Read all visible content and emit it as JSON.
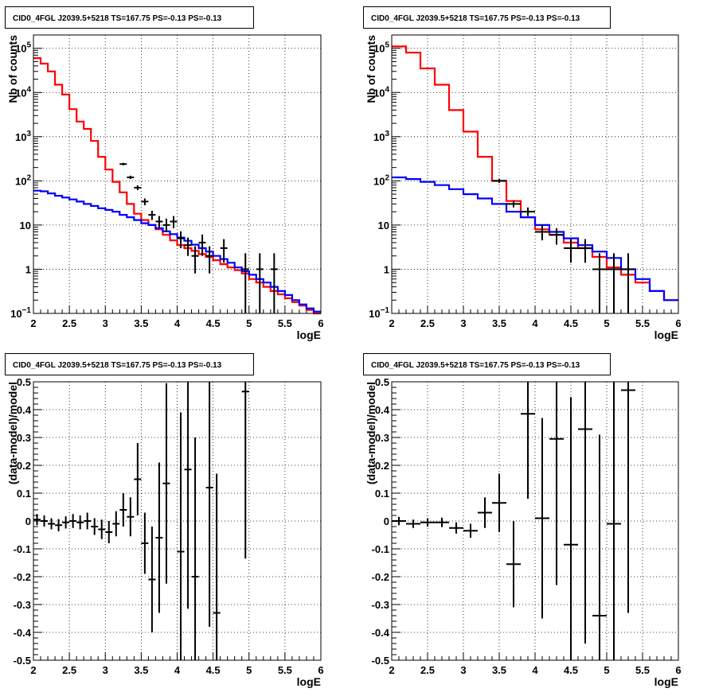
{
  "chart_data": [
    {
      "type": "histogram-log",
      "title": "CID0_4FGL J2039.5+5218 TS=167.75 PS=-0.13 PS=-0.13",
      "xlabel": "logE",
      "ylabel": "Nb of counts",
      "xlim": [
        2,
        6
      ],
      "ylim": [
        0.1,
        200000
      ],
      "yscale": "log",
      "grid": true,
      "x_ticks": [
        "2",
        "2.5",
        "3",
        "3.5",
        "4",
        "4.5",
        "5",
        "5.5",
        "6"
      ],
      "y_ticks": [
        {
          "v": 0.1,
          "b": "10",
          "e": "−1"
        },
        {
          "v": 1,
          "b": "1",
          "e": ""
        },
        {
          "v": 10,
          "b": "10",
          "e": ""
        },
        {
          "v": 100,
          "b": "10",
          "e": "2"
        },
        {
          "v": 1000,
          "b": "10",
          "e": "3"
        },
        {
          "v": 10000,
          "b": "10",
          "e": "4"
        },
        {
          "v": 100000,
          "b": "10",
          "e": "5"
        }
      ],
      "bin_width": 0.1,
      "series": [
        {
          "color": "#ff0000",
          "style": "step",
          "x": [
            2.0,
            2.1,
            2.2,
            2.3,
            2.4,
            2.5,
            2.6,
            2.7,
            2.8,
            2.9,
            3.0,
            3.1,
            3.2,
            3.3,
            3.4,
            3.5,
            3.6,
            3.7,
            3.8,
            3.9,
            4.0,
            4.1,
            4.2,
            4.3,
            4.4,
            4.5,
            4.6,
            4.7,
            4.8,
            4.9,
            5.0,
            5.1,
            5.2,
            5.3,
            5.4,
            5.5,
            5.6,
            5.7,
            5.8,
            5.9
          ],
          "y": [
            60000,
            45000,
            30000,
            15000,
            9000,
            4200,
            2200,
            1500,
            800,
            350,
            180,
            95,
            55,
            30,
            18,
            13,
            10,
            8,
            6,
            4.5,
            3.5,
            3,
            2.6,
            2.2,
            1.9,
            1.6,
            1.3,
            1.1,
            0.95,
            0.8,
            0.6,
            0.5,
            0.4,
            0.32,
            0.27,
            0.22,
            0.18,
            0.15,
            0.12,
            0.1
          ]
        },
        {
          "color": "#0000ff",
          "style": "step",
          "x": [
            2.0,
            2.1,
            2.2,
            2.3,
            2.4,
            2.5,
            2.6,
            2.7,
            2.8,
            2.9,
            3.0,
            3.1,
            3.2,
            3.3,
            3.4,
            3.5,
            3.6,
            3.7,
            3.8,
            3.9,
            4.0,
            4.1,
            4.2,
            4.3,
            4.4,
            4.5,
            4.6,
            4.7,
            4.8,
            4.9,
            5.0,
            5.1,
            5.2,
            5.3,
            5.4,
            5.5,
            5.6,
            5.7,
            5.8,
            5.9
          ],
          "y": [
            60,
            58,
            52,
            46,
            42,
            38,
            34,
            30,
            27,
            24,
            22,
            20,
            17,
            15,
            13,
            11,
            10,
            8.5,
            7.2,
            6.2,
            5.2,
            4.4,
            3.6,
            3,
            2.5,
            2,
            1.7,
            1.4,
            1.1,
            0.9,
            0.75,
            0.6,
            0.5,
            0.4,
            0.32,
            0.26,
            0.2,
            0.16,
            0.13,
            0.11
          ]
        },
        {
          "color": "#000000",
          "style": "errorbar",
          "x": [
            3.25,
            3.35,
            3.45,
            3.55,
            3.65,
            3.75,
            3.85,
            3.95,
            4.05,
            4.15,
            4.25,
            4.35,
            4.45,
            4.65,
            4.95,
            5.15,
            5.35
          ],
          "y": [
            240,
            120,
            70,
            34,
            17,
            12,
            10,
            12,
            5,
            3.5,
            2,
            4,
            2,
            3,
            1,
            1,
            1
          ],
          "lo": [
            225,
            110,
            62,
            28,
            13,
            8.5,
            6.9,
            8.5,
            3,
            2,
            0.8,
            2,
            0.8,
            1.4,
            0.1,
            0.1,
            0.1
          ],
          "hi": [
            255,
            131,
            79,
            40,
            21,
            16,
            14,
            16,
            7.2,
            5.2,
            3.3,
            6.1,
            3.3,
            4.8,
            2.3,
            2.3,
            2.3
          ]
        }
      ]
    },
    {
      "type": "histogram-log",
      "title": "CID0_4FGL J2039.5+5218 TS=167.75 PS=-0.13 PS=-0.13",
      "xlabel": "logE",
      "ylabel": "Nb of counts",
      "xlim": [
        2,
        6
      ],
      "ylim": [
        0.1,
        200000
      ],
      "yscale": "log",
      "grid": true,
      "x_ticks": [
        "2",
        "2.5",
        "3",
        "3.5",
        "4",
        "4.5",
        "5",
        "5.5",
        "6"
      ],
      "y_ticks": [
        {
          "v": 0.1,
          "b": "10",
          "e": "−1"
        },
        {
          "v": 1,
          "b": "1",
          "e": ""
        },
        {
          "v": 10,
          "b": "10",
          "e": ""
        },
        {
          "v": 100,
          "b": "10",
          "e": "2"
        },
        {
          "v": 1000,
          "b": "10",
          "e": "3"
        },
        {
          "v": 10000,
          "b": "10",
          "e": "4"
        },
        {
          "v": 100000,
          "b": "10",
          "e": "5"
        }
      ],
      "bin_width": 0.2,
      "series": [
        {
          "color": "#ff0000",
          "style": "step",
          "x": [
            2.0,
            2.2,
            2.4,
            2.6,
            2.8,
            3.0,
            3.2,
            3.4,
            3.6,
            3.8,
            4.0,
            4.2,
            4.4,
            4.6,
            4.8,
            5.0,
            5.2,
            5.4,
            5.6,
            5.8
          ],
          "y": [
            110000,
            80000,
            35000,
            15000,
            4000,
            1300,
            350,
            100,
            35,
            15,
            8,
            6,
            4,
            3,
            1.9,
            1.1,
            0.75,
            0.5,
            0.32,
            0.2
          ]
        },
        {
          "color": "#0000ff",
          "style": "step",
          "x": [
            2.0,
            2.2,
            2.4,
            2.6,
            2.8,
            3.0,
            3.2,
            3.4,
            3.6,
            3.8,
            4.0,
            4.2,
            4.4,
            4.6,
            4.8,
            5.0,
            5.2,
            5.4,
            5.6,
            5.8
          ],
          "y": [
            120,
            110,
            95,
            80,
            65,
            50,
            40,
            30,
            20,
            15,
            10,
            7,
            5,
            3.5,
            2.5,
            1.8,
            1.0,
            0.6,
            0.32,
            0.2
          ]
        },
        {
          "color": "#000000",
          "style": "errorbar",
          "x": [
            3.5,
            3.7,
            3.9,
            4.1,
            4.3,
            4.5,
            4.7,
            4.9,
            5.1,
            5.3
          ],
          "y": [
            100,
            30,
            20,
            7,
            6,
            3,
            3,
            1,
            1,
            1
          ],
          "lo": [
            90,
            25,
            16,
            4.5,
            3.6,
            1.4,
            1.4,
            0.1,
            0.1,
            0.1
          ],
          "hi": [
            110,
            36,
            25,
            10,
            8.5,
            4.8,
            4.8,
            2.3,
            2.3,
            2.3
          ]
        }
      ]
    },
    {
      "type": "errorbar",
      "title": "CID0_4FGL J2039.5+5218 TS=167.75 PS=-0.13 PS=-0.13",
      "xlabel": "logE",
      "ylabel": "(data-model)/model",
      "xlim": [
        2,
        6
      ],
      "ylim": [
        -0.5,
        0.5
      ],
      "grid": true,
      "x_ticks": [
        "2",
        "2.5",
        "3",
        "3.5",
        "4",
        "4.5",
        "5",
        "5.5",
        "6"
      ],
      "y_ticks": [
        "−0.5",
        "−0.4",
        "−0.3",
        "−0.2",
        "−0.1",
        "0",
        "0.1",
        "0.2",
        "0.3",
        "0.4",
        "0.5"
      ],
      "bin_width": 0.1,
      "series": [
        {
          "color": "#000000",
          "style": "errorbar",
          "x": [
            2.05,
            2.15,
            2.25,
            2.35,
            2.45,
            2.55,
            2.65,
            2.75,
            2.85,
            2.95,
            3.05,
            3.15,
            3.25,
            3.35,
            3.45,
            3.55,
            3.65,
            3.75,
            3.85,
            4.05,
            4.15,
            4.25,
            4.45,
            4.55,
            4.95
          ],
          "y": [
            0.005,
            0.0,
            -0.01,
            -0.015,
            -0.005,
            0.0,
            -0.005,
            0.0,
            -0.02,
            -0.03,
            -0.04,
            -0.01,
            0.04,
            0.015,
            0.15,
            -0.08,
            -0.21,
            -0.06,
            0.135,
            -0.11,
            0.185,
            -0.2,
            0.12,
            -0.33,
            0.465
          ],
          "err": [
            0.02,
            0.02,
            0.02,
            0.022,
            0.022,
            0.025,
            0.025,
            0.03,
            0.03,
            0.035,
            0.04,
            0.045,
            0.06,
            0.07,
            0.13,
            0.11,
            0.19,
            0.27,
            0.36,
            0.5,
            0.5,
            0.5,
            0.5,
            0.5,
            0.6
          ]
        }
      ]
    },
    {
      "type": "errorbar",
      "title": "CID0_4FGL J2039.5+5218 TS=167.75 PS=-0.13 PS=-0.13",
      "xlabel": "logE",
      "ylabel": "(data-model)/model",
      "xlim": [
        2,
        6
      ],
      "ylim": [
        -0.5,
        0.5
      ],
      "grid": true,
      "x_ticks": [
        "2",
        "2.5",
        "3",
        "3.5",
        "4",
        "4.5",
        "5",
        "5.5",
        "6"
      ],
      "y_ticks": [
        "−0.5",
        "−0.4",
        "−0.3",
        "−0.2",
        "−0.1",
        "0",
        "0.1",
        "0.2",
        "0.3",
        "0.4",
        "0.5"
      ],
      "bin_width": 0.2,
      "series": [
        {
          "color": "#000000",
          "style": "errorbar",
          "x": [
            2.1,
            2.3,
            2.5,
            2.7,
            2.9,
            3.1,
            3.3,
            3.5,
            3.7,
            3.9,
            4.1,
            4.3,
            4.5,
            4.7,
            4.9,
            5.1,
            5.3
          ],
          "y": [
            0.0,
            -0.01,
            -0.005,
            -0.005,
            -0.025,
            -0.035,
            0.03,
            0.065,
            -0.155,
            0.385,
            0.01,
            0.295,
            -0.085,
            0.33,
            -0.34,
            -0.01,
            0.47
          ],
          "err": [
            0.015,
            0.015,
            0.015,
            0.017,
            0.02,
            0.025,
            0.055,
            0.105,
            0.155,
            0.305,
            0.36,
            0.525,
            0.53,
            0.77,
            0.65,
            0.7,
            0.8
          ]
        }
      ]
    }
  ]
}
